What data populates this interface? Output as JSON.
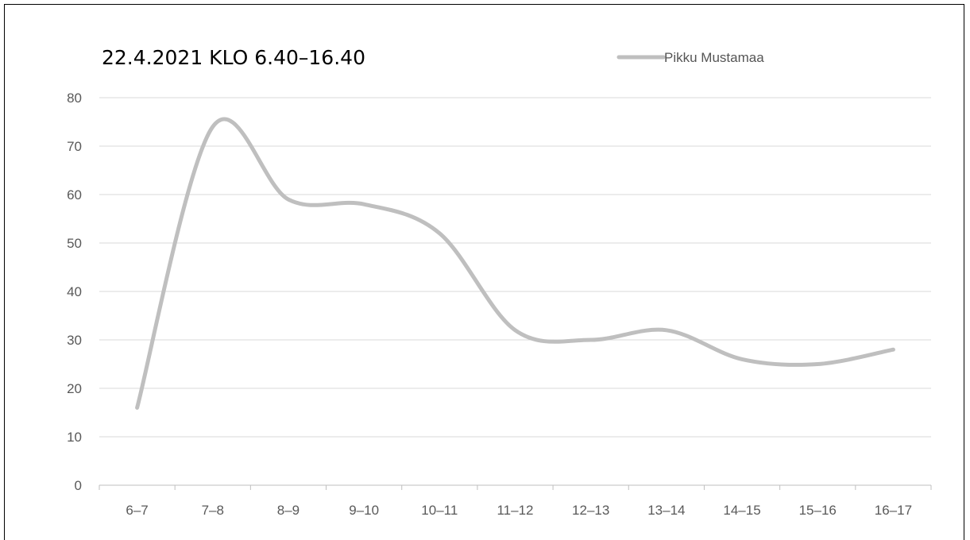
{
  "chart_data": {
    "type": "line",
    "title": "22.4.2021 KLO 6.40–16.40",
    "xlabel": "",
    "ylabel": "",
    "categories": [
      "6–7",
      "7–8",
      "8–9",
      "9–10",
      "10–11",
      "11–12",
      "12–13",
      "13–14",
      "14–15",
      "15–16",
      "16–17"
    ],
    "series": [
      {
        "name": "Pikku Mustamaa",
        "values": [
          16,
          74,
          59,
          58,
          52,
          32,
          30,
          32,
          26,
          25,
          28
        ],
        "color": "#bfbfbf"
      }
    ],
    "ylim": [
      0,
      80
    ],
    "yticks": [
      0,
      10,
      20,
      30,
      40,
      50,
      60,
      70,
      80
    ],
    "grid": true,
    "smooth": true,
    "legend": "top-right"
  }
}
